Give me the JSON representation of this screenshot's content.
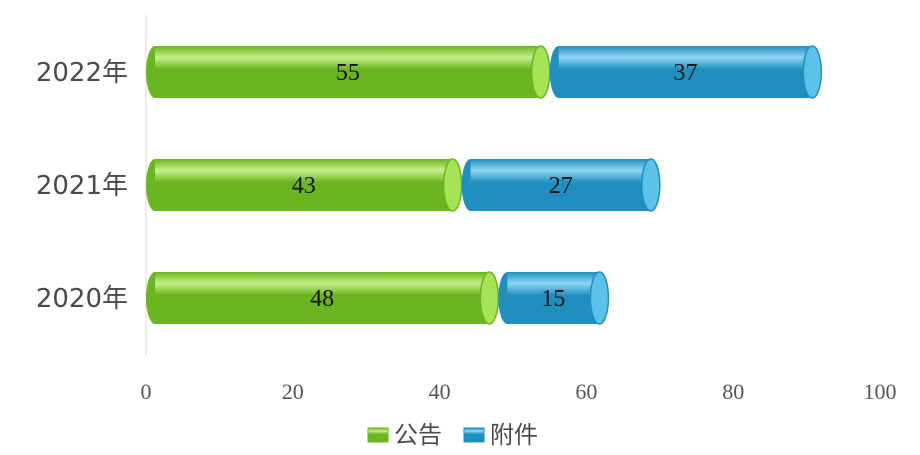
{
  "chart_data": {
    "type": "bar",
    "orientation": "horizontal",
    "stacked": true,
    "categories": [
      "2022年",
      "2021年",
      "2020年"
    ],
    "series": [
      {
        "name": "公告",
        "values": [
          55,
          43,
          48
        ],
        "color": "#6ab520",
        "highlight": "#c8ef8a",
        "cap": "#a7e356"
      },
      {
        "name": "附件",
        "values": [
          37,
          27,
          15
        ],
        "color": "#1f8fc0",
        "highlight": "#8fd6f2",
        "cap": "#5bc2ea"
      }
    ],
    "xlim": [
      0,
      100
    ],
    "xticks": [
      0,
      20,
      40,
      60,
      80,
      100
    ],
    "grid": false,
    "legend_position": "bottom",
    "bar_style": "cylinder"
  }
}
